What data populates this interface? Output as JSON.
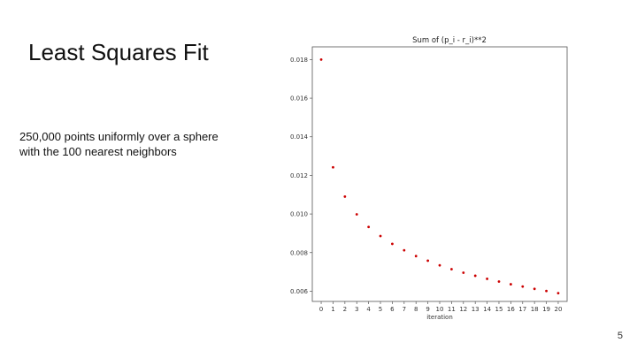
{
  "slide": {
    "title": "Least Squares Fit",
    "body_lines": [
      "250,000 points uniformly over a sphere",
      "with the 100 nearest neighbors"
    ],
    "page_number": "5"
  },
  "chart_data": {
    "type": "scatter",
    "title": "Sum of (p_i - r_i)**2",
    "xlabel": "iteration",
    "ylabel": "",
    "x": [
      0,
      1,
      2,
      3,
      4,
      5,
      6,
      7,
      8,
      9,
      10,
      11,
      12,
      13,
      14,
      15,
      16,
      17,
      18,
      19,
      20
    ],
    "y": [
      0.018,
      0.01242,
      0.0109,
      0.00998,
      0.00933,
      0.00886,
      0.00845,
      0.00812,
      0.00782,
      0.00758,
      0.00734,
      0.00714,
      0.00696,
      0.0068,
      0.00664,
      0.0065,
      0.00636,
      0.00624,
      0.00612,
      0.00601,
      0.0059
    ],
    "xticks": [
      "0",
      "1",
      "2",
      "3",
      "4",
      "5",
      "6",
      "7",
      "8",
      "9",
      "10",
      "11",
      "12",
      "13",
      "14",
      "15",
      "16",
      "17",
      "18",
      "19",
      "20"
    ],
    "yticks": [
      "0.006",
      "0.008",
      "0.010",
      "0.012",
      "0.014",
      "0.016",
      "0.018"
    ],
    "ylim": [
      0.00547,
      0.01866
    ],
    "xlim": [
      -0.75,
      20.75
    ],
    "grid": false,
    "legend": "none",
    "marker_color": "#cc0000"
  }
}
